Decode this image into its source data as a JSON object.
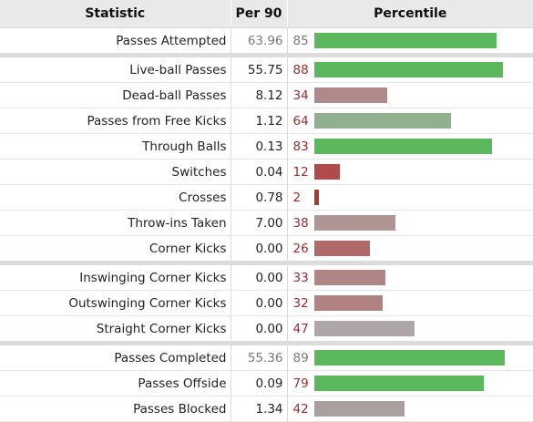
{
  "header": {
    "statistic": "Statistic",
    "per90": "Per 90",
    "percentile": "Percentile"
  },
  "rows": [
    {
      "label": "Passes Attempted",
      "per90": "63.96",
      "percentile": 85,
      "color": "#5cb85c",
      "muted": true,
      "group_start": false
    },
    {
      "label": "Live-ball Passes",
      "per90": "55.75",
      "percentile": 88,
      "color": "#5cb85c",
      "muted": false,
      "group_start": true
    },
    {
      "label": "Dead-ball Passes",
      "per90": "8.12",
      "percentile": 34,
      "color": "#b08a8a",
      "muted": false,
      "group_start": false
    },
    {
      "label": "Passes from Free Kicks",
      "per90": "1.12",
      "percentile": 64,
      "color": "#8fb18f",
      "muted": false,
      "group_start": false
    },
    {
      "label": "Through Balls",
      "per90": "0.13",
      "percentile": 83,
      "color": "#5cb85c",
      "muted": false,
      "group_start": false
    },
    {
      "label": "Switches",
      "per90": "0.04",
      "percentile": 12,
      "color": "#b04b4b",
      "muted": false,
      "group_start": false
    },
    {
      "label": "Crosses",
      "per90": "0.78",
      "percentile": 2,
      "color": "#b03535",
      "muted": false,
      "group_start": false
    },
    {
      "label": "Throw-ins Taken",
      "per90": "7.00",
      "percentile": 38,
      "color": "#b09595",
      "muted": false,
      "group_start": false
    },
    {
      "label": "Corner Kicks",
      "per90": "0.00",
      "percentile": 26,
      "color": "#b06a6a",
      "muted": false,
      "group_start": false
    },
    {
      "label": "Inswinging Corner Kicks",
      "per90": "0.00",
      "percentile": 33,
      "color": "#b08585",
      "muted": false,
      "group_start": true
    },
    {
      "label": "Outswinging Corner Kicks",
      "per90": "0.00",
      "percentile": 32,
      "color": "#b08282",
      "muted": false,
      "group_start": false
    },
    {
      "label": "Straight Corner Kicks",
      "per90": "0.00",
      "percentile": 47,
      "color": "#aea6a6",
      "muted": false,
      "group_start": false
    },
    {
      "label": "Passes Completed",
      "per90": "55.36",
      "percentile": 89,
      "color": "#5cb85c",
      "muted": true,
      "group_start": true
    },
    {
      "label": "Passes Offside",
      "per90": "0.09",
      "percentile": 79,
      "color": "#5cb85c",
      "muted": false,
      "group_start": false
    },
    {
      "label": "Passes Blocked",
      "per90": "1.34",
      "percentile": 42,
      "color": "#a9a09f",
      "muted": false,
      "group_start": false
    }
  ]
}
